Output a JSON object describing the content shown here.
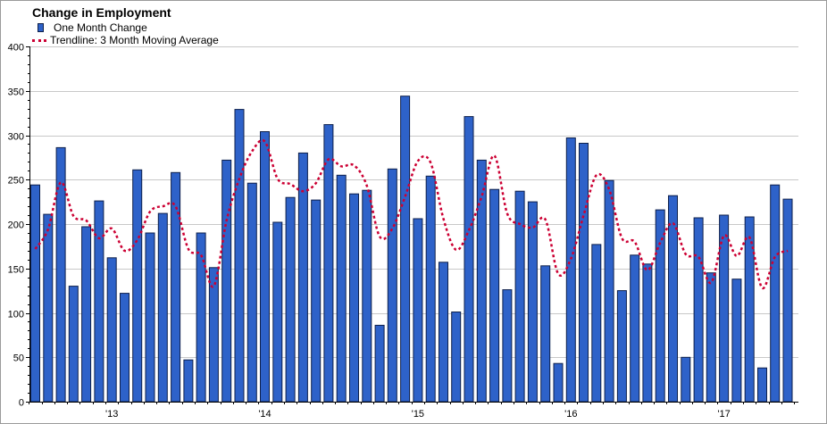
{
  "chart_data": {
    "type": "bar",
    "title": "Change in Employment",
    "legend": {
      "placement": "top-left",
      "bar_label": "One Month Change",
      "line_label": "Trendline: 3 Month Moving Average"
    },
    "ylim": [
      0,
      400
    ],
    "yticks": [
      "0",
      "50",
      "100",
      "150",
      "200",
      "250",
      "300",
      "350",
      "400"
    ],
    "xticks": [
      "'13",
      "'14",
      "'15",
      "'16",
      "'17"
    ],
    "grid": true,
    "colors": {
      "bar": "#2e62c9",
      "bar_edge": "#0d1f4a",
      "line": "#cc0033",
      "grid": "#c8c8c8"
    },
    "series": [
      {
        "name": "One Month Change",
        "type": "bar",
        "values": [
          244,
          211,
          286,
          130,
          197,
          226,
          162,
          122,
          261,
          190,
          212,
          258,
          47,
          190,
          151,
          272,
          329,
          246,
          304,
          202,
          230,
          280,
          227,
          312,
          255,
          234,
          238,
          86,
          262,
          344,
          206,
          254,
          157,
          101,
          321,
          272,
          239,
          126,
          237,
          225,
          153,
          43,
          297,
          291,
          177,
          249,
          125,
          165,
          155,
          216,
          232,
          50,
          207,
          145,
          210,
          138,
          208,
          38,
          244,
          228
        ]
      },
      {
        "name": "Trendline: 3 Month Moving Average",
        "type": "line",
        "values": [
          172,
          194,
          247,
          209,
          204,
          184,
          195,
          170,
          182,
          214,
          220,
          220,
          172,
          165,
          130,
          204,
          251,
          282,
          293,
          251,
          245,
          237,
          246,
          273,
          265,
          266,
          243,
          186,
          195,
          231,
          271,
          269,
          206,
          171,
          193,
          231,
          277,
          212,
          200,
          196,
          205,
          144,
          161,
          210,
          255,
          239,
          184,
          180,
          148,
          179,
          201,
          166,
          163,
          134,
          187,
          164,
          185,
          128,
          163,
          170
        ]
      }
    ]
  }
}
